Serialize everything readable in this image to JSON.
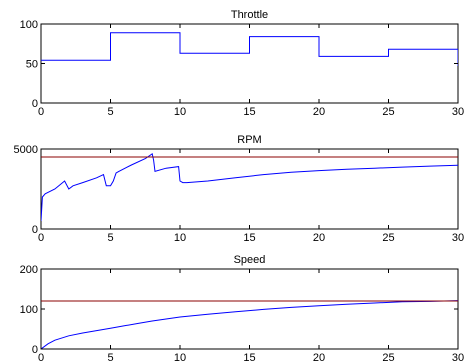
{
  "figure_title": "",
  "chart_data": [
    {
      "type": "line",
      "title": "Throttle",
      "xlabel": "",
      "ylabel": "",
      "xlim": [
        0,
        30
      ],
      "ylim": [
        0,
        100
      ],
      "xticks": [
        0,
        5,
        10,
        15,
        20,
        25,
        30
      ],
      "yticks": [
        0,
        50,
        100
      ],
      "grid": false,
      "series": [
        {
          "color": "#0000ff",
          "x": [
            0,
            5,
            5,
            10,
            10,
            15,
            15,
            20,
            20,
            25,
            25,
            30,
            30
          ],
          "y": [
            54,
            54,
            89,
            89,
            63,
            63,
            84,
            84,
            59,
            59,
            68,
            68,
            47
          ]
        }
      ]
    },
    {
      "type": "line",
      "title": "RPM",
      "xlabel": "",
      "ylabel": "",
      "xlim": [
        0,
        30
      ],
      "ylim": [
        0,
        5000
      ],
      "xticks": [
        0,
        5,
        10,
        15,
        20,
        25,
        30
      ],
      "yticks": [
        0,
        5000
      ],
      "grid": false,
      "series": [
        {
          "color": "#0000ff",
          "x": [
            0,
            0.1,
            0.3,
            1,
            1.7,
            2.0,
            2.3,
            3,
            4,
            4.5,
            4.7,
            5.0,
            5.2,
            5.4,
            5.6,
            6.5,
            7.5,
            8.0,
            8.1,
            8.2,
            9,
            9.9,
            10.0,
            10.2,
            10.5,
            12,
            14,
            16,
            18,
            20,
            22,
            24,
            26,
            28,
            30
          ],
          "y": [
            500,
            2000,
            2200,
            2500,
            3000,
            2500,
            2700,
            2900,
            3200,
            3400,
            2700,
            2700,
            3000,
            3500,
            3600,
            4000,
            4400,
            4700,
            4300,
            3600,
            3800,
            3900,
            3000,
            2900,
            2900,
            3000,
            3200,
            3400,
            3550,
            3650,
            3730,
            3800,
            3870,
            3930,
            3990
          ]
        },
        {
          "color": "#8b0000",
          "x": [
            0,
            30
          ],
          "y": [
            4500,
            4500
          ]
        }
      ]
    },
    {
      "type": "line",
      "title": "Speed",
      "xlabel": "",
      "ylabel": "",
      "xlim": [
        0,
        30
      ],
      "ylim": [
        0,
        200
      ],
      "xticks": [
        0,
        5,
        10,
        15,
        20,
        25,
        30
      ],
      "yticks": [
        0,
        100,
        200
      ],
      "grid": false,
      "series": [
        {
          "color": "#0000ff",
          "x": [
            0,
            0.5,
            1,
            2,
            3,
            4,
            5,
            6,
            7,
            8,
            9,
            10,
            12,
            14,
            16,
            18,
            20,
            22,
            24,
            26,
            28,
            30
          ],
          "y": [
            0,
            13,
            22,
            33,
            40,
            46,
            52,
            58,
            64,
            70,
            75,
            80,
            87,
            93,
            99,
            104,
            108,
            112,
            115,
            118,
            119,
            121
          ]
        },
        {
          "color": "#8b0000",
          "x": [
            0,
            30
          ],
          "y": [
            120,
            120
          ]
        }
      ]
    }
  ]
}
